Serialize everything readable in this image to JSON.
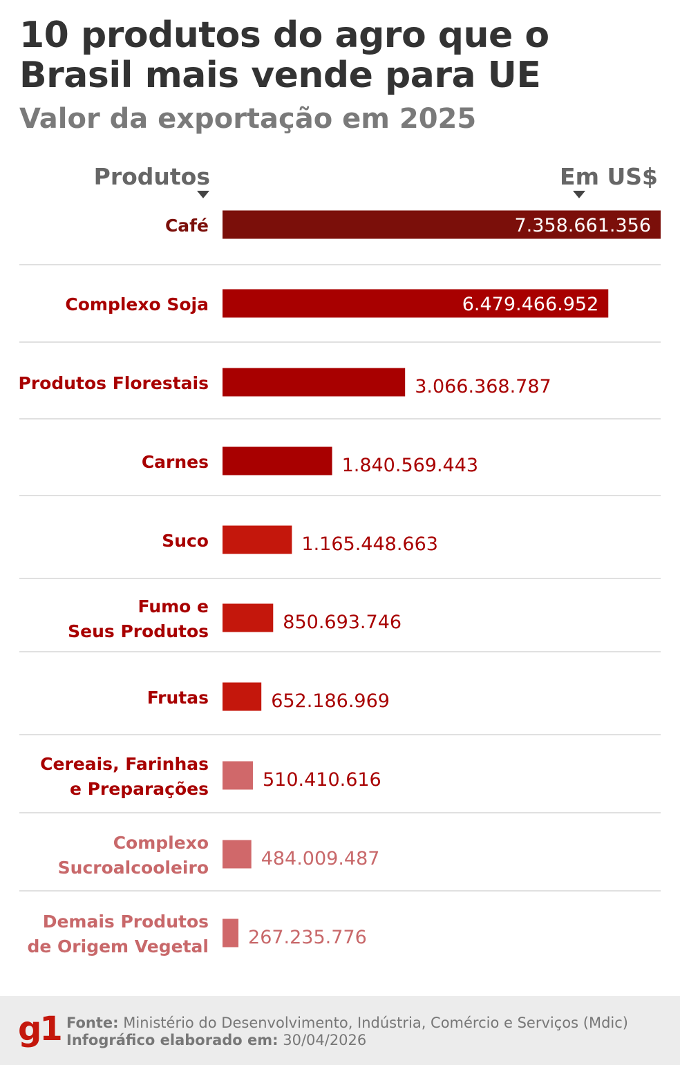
{
  "title": "10 produtos do agro que o Brasil mais vende para UE",
  "subtitle": "Valor da exportação em 2025",
  "header": {
    "left": "Produtos",
    "right": "Em US$"
  },
  "colors": {
    "bar_dark": "#7b0f0a",
    "bar_red": "#a80000",
    "bar_bright": "#c4170c",
    "bar_light": "#d0686a",
    "label_dark": "#7b0f0a",
    "label_red": "#a80000",
    "label_light": "#c8686a",
    "divider": "#d6d6d6"
  },
  "chart_data": {
    "type": "bar",
    "orientation": "horizontal",
    "title": "10 produtos do agro que o Brasil mais vende para UE",
    "subtitle": "Valor da exportação em 2025",
    "xlabel": "Em US$",
    "ylabel": "Produtos",
    "categories": [
      [
        "Café"
      ],
      [
        "Complexo Soja"
      ],
      [
        "Produtos Florestais"
      ],
      [
        "Carnes"
      ],
      [
        "Suco"
      ],
      [
        "Fumo e",
        "Seus Produtos"
      ],
      [
        "Frutas"
      ],
      [
        "Cereais, Farinhas",
        "e Preparações"
      ],
      [
        "Complexo",
        "Sucroalcooleiro"
      ],
      [
        "Demais Produtos",
        "de Origem Vegetal"
      ]
    ],
    "values": [
      7358661356,
      6479466952,
      3066368787,
      1840569443,
      1165448663,
      850693746,
      652186969,
      510410616,
      484009487,
      267235776
    ],
    "value_labels": [
      "7.358.661.356",
      "6.479.466.952",
      "3.066.368.787",
      "1.840.569.443",
      "1.165.448.663",
      "850.693.746",
      "652.186.969",
      "510.410.616",
      "484.009.487",
      "267.235.776"
    ],
    "bar_colors": [
      "#7b0f0a",
      "#a80000",
      "#a80000",
      "#a80000",
      "#c4170c",
      "#c4170c",
      "#c4170c",
      "#d0686a",
      "#d0686a",
      "#d0686a"
    ],
    "label_colors": [
      "#7b0f0a",
      "#a80000",
      "#a80000",
      "#a80000",
      "#a80000",
      "#a80000",
      "#a80000",
      "#a80000",
      "#c8686a",
      "#c8686a"
    ],
    "xlim": [
      0,
      7358661356
    ],
    "grid": false,
    "legend": "none"
  },
  "footer": {
    "logo": "g1",
    "source_label": "Fonte:",
    "source_text": "Ministério do Desenvolvimento, Indústria, Comércio e Serviços (Mdic)",
    "date_label": "Infográfico elaborado em:",
    "date_text": "30/04/2026"
  }
}
